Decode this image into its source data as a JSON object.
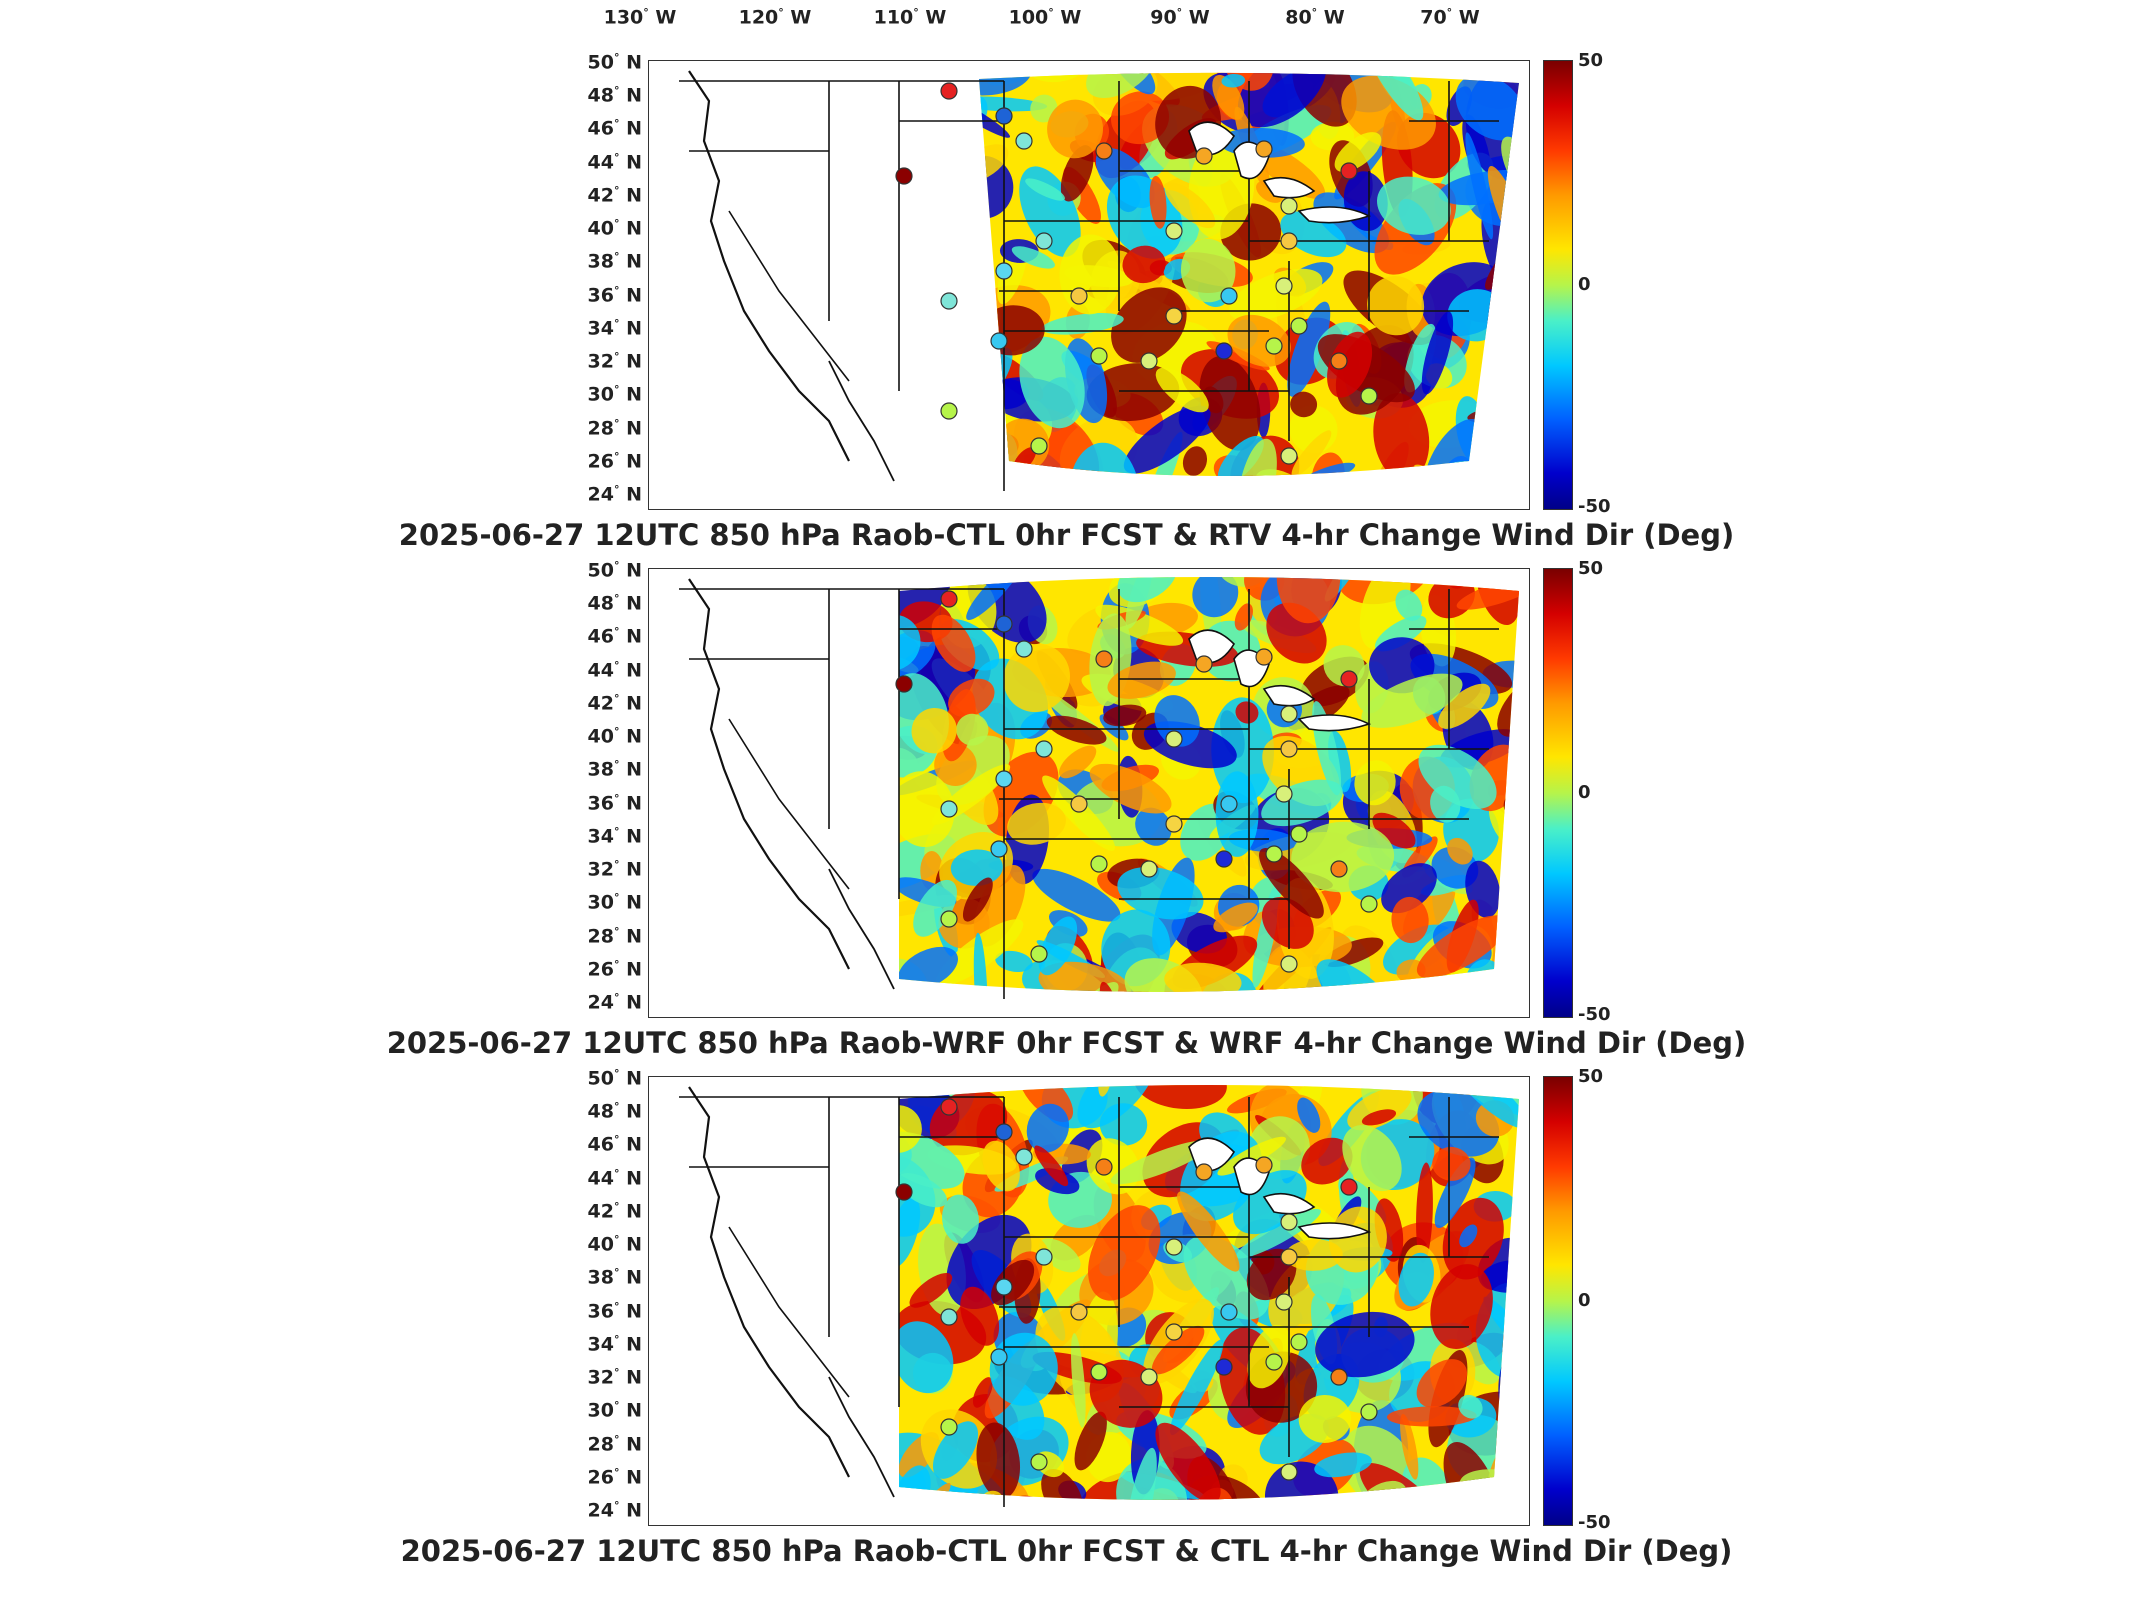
{
  "longitude_labels": [
    "130",
    "120",
    "110",
    "100",
    "90",
    "80",
    "70"
  ],
  "longitude_suffix": "W",
  "latitude_labels": [
    "50",
    "48",
    "46",
    "44",
    "42",
    "40",
    "38",
    "36",
    "34",
    "32",
    "30",
    "28",
    "26",
    "24"
  ],
  "latitude_suffix": "N",
  "degree_symbol": "°",
  "colorbar": {
    "max_label": "50",
    "mid_label": "0",
    "min_label": "-50",
    "range": [
      -50,
      50
    ]
  },
  "colorbar_colors": [
    "#7a0000",
    "#d40000",
    "#ff9a00",
    "#ffe600",
    "#4af0c8",
    "#00c8ff",
    "#0060ff",
    "#000088"
  ],
  "panels": [
    {
      "title": "2025-06-27 12UTC 850 hPa Raob-CTL 0hr FCST & RTV 4-hr Change Wind Dir (Deg)"
    },
    {
      "title": "2025-06-27 12UTC 850 hPa Raob-WRF 0hr FCST & WRF 4-hr Change Wind Dir (Deg)"
    },
    {
      "title": "2025-06-27 12UTC 850 hPa Raob-CTL 0hr FCST & CTL 4-hr Change Wind Dir (Deg)"
    }
  ]
}
